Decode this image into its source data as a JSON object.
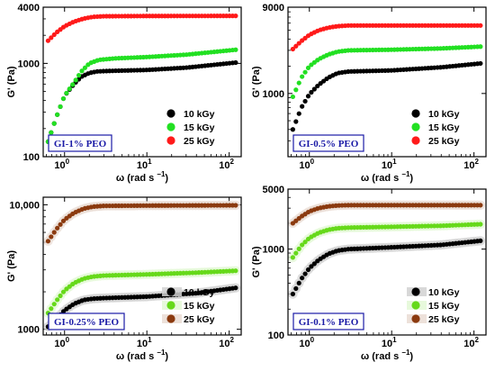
{
  "chart_data": [
    {
      "type": "scatter",
      "panel_label": "GI-1% PEO",
      "xlabel": "ω (rad s",
      "xlabel_sup": "−1",
      "xlabel_close": ")",
      "ylabel": "G' (Pa)",
      "xscale": "log",
      "yscale": "log",
      "xlim": [
        0.55,
        140
      ],
      "ylim": [
        100,
        4000
      ],
      "x_ticks": [
        {
          "value": 1,
          "label": "10",
          "sup": "0"
        },
        {
          "value": 10,
          "label": "10",
          "sup": "1"
        },
        {
          "value": 100,
          "label": "10",
          "sup": "2"
        }
      ],
      "y_ticks": [
        {
          "value": 100,
          "label": "100"
        },
        {
          "value": 1000,
          "label": "1000"
        },
        {
          "value": 4000,
          "label": "4000"
        }
      ],
      "legend_position": "bottom-right",
      "series": [
        {
          "name": "10 kGy",
          "color": "#000000",
          "anchors": [
            [
              0.63,
              145
            ],
            [
              0.8,
              270
            ],
            [
              1.0,
              450
            ],
            [
              1.3,
              600
            ],
            [
              1.6,
              720
            ],
            [
              2.0,
              790
            ],
            [
              2.5,
              820
            ],
            [
              3.5,
              830
            ],
            [
              10,
              850
            ],
            [
              30,
              900
            ],
            [
              120,
              1020
            ]
          ]
        },
        {
          "name": "15 kGy",
          "color": "#22e022",
          "anchors": [
            [
              0.63,
              145
            ],
            [
              0.8,
              270
            ],
            [
              1.0,
              450
            ],
            [
              1.3,
              620
            ],
            [
              1.6,
              820
            ],
            [
              2.0,
              1000
            ],
            [
              2.6,
              1090
            ],
            [
              4,
              1130
            ],
            [
              10,
              1170
            ],
            [
              30,
              1240
            ],
            [
              120,
              1400
            ]
          ]
        },
        {
          "name": "25 kGy",
          "color": "#ff1a1a",
          "anchors": [
            [
              0.63,
              1750
            ],
            [
              0.8,
              2150
            ],
            [
              1.0,
              2500
            ],
            [
              1.3,
              2800
            ],
            [
              1.7,
              3020
            ],
            [
              2.2,
              3150
            ],
            [
              3,
              3200
            ],
            [
              10,
              3220
            ],
            [
              120,
              3230
            ]
          ]
        }
      ]
    },
    {
      "type": "scatter",
      "panel_label": "GI-0.5% PEO",
      "xlabel": "ω (rad s",
      "xlabel_sup": "−1",
      "xlabel_close": ")",
      "ylabel": "G' (Pa)",
      "xscale": "log",
      "yscale": "log",
      "xlim": [
        0.55,
        140
      ],
      "ylim": [
        200,
        9000
      ],
      "x_ticks": [
        {
          "value": 1,
          "label": "10",
          "sup": "0"
        },
        {
          "value": 10,
          "label": "10",
          "sup": "1"
        },
        {
          "value": 100,
          "label": "10",
          "sup": "2"
        }
      ],
      "y_ticks": [
        {
          "value": 1000,
          "label": "1000"
        },
        {
          "value": 9000,
          "label": "9000"
        }
      ],
      "legend_position": "bottom-right",
      "series": [
        {
          "name": "10 kGy",
          "color": "#000000",
          "anchors": [
            [
              0.63,
              400
            ],
            [
              0.8,
              700
            ],
            [
              1.0,
              980
            ],
            [
              1.3,
              1250
            ],
            [
              1.7,
              1500
            ],
            [
              2.2,
              1680
            ],
            [
              3,
              1750
            ],
            [
              10,
              1800
            ],
            [
              40,
              1950
            ],
            [
              120,
              2150
            ]
          ]
        },
        {
          "name": "15 kGy",
          "color": "#22e022",
          "anchors": [
            [
              0.63,
              920
            ],
            [
              0.8,
              1500
            ],
            [
              1.0,
              2000
            ],
            [
              1.3,
              2400
            ],
            [
              1.7,
              2700
            ],
            [
              2.2,
              2900
            ],
            [
              3,
              3000
            ],
            [
              10,
              3050
            ],
            [
              40,
              3150
            ],
            [
              120,
              3300
            ]
          ]
        },
        {
          "name": "25 kGy",
          "color": "#ff1a1a",
          "anchors": [
            [
              0.63,
              3100
            ],
            [
              0.8,
              3800
            ],
            [
              1.0,
              4450
            ],
            [
              1.3,
              5000
            ],
            [
              1.7,
              5350
            ],
            [
              2.2,
              5550
            ],
            [
              3,
              5650
            ],
            [
              10,
              5650
            ],
            [
              120,
              5650
            ]
          ]
        }
      ]
    },
    {
      "type": "scatter",
      "panel_label": "GI-0.25% PEO",
      "xlabel": "ω (rad s",
      "xlabel_sup": "−1",
      "xlabel_close": ")",
      "ylabel": "G' (Pa)",
      "xscale": "log",
      "yscale": "log",
      "xlim": [
        0.55,
        140
      ],
      "ylim": [
        900,
        11500
      ],
      "x_ticks": [
        {
          "value": 1,
          "label": "10",
          "sup": "0"
        },
        {
          "value": 10,
          "label": "10",
          "sup": "1"
        },
        {
          "value": 100,
          "label": "10",
          "sup": "2"
        }
      ],
      "y_ticks": [
        {
          "value": 1000,
          "label": "1000"
        },
        {
          "value": 10000,
          "label": "10,000"
        }
      ],
      "legend_position": "bottom-right",
      "series": [
        {
          "name": "10 kGy",
          "color": "#000000",
          "anchors": [
            [
              0.63,
              1050
            ],
            [
              0.8,
              1220
            ],
            [
              1.0,
              1420
            ],
            [
              1.3,
              1600
            ],
            [
              1.7,
              1720
            ],
            [
              2.2,
              1760
            ],
            [
              3,
              1780
            ],
            [
              10,
              1830
            ],
            [
              40,
              1950
            ],
            [
              120,
              2150
            ]
          ]
        },
        {
          "name": "15 kGy",
          "color": "#66d91a",
          "anchors": [
            [
              0.63,
              1350
            ],
            [
              0.8,
              1700
            ],
            [
              1.0,
              2050
            ],
            [
              1.3,
              2350
            ],
            [
              1.7,
              2550
            ],
            [
              2.2,
              2650
            ],
            [
              3,
              2700
            ],
            [
              10,
              2760
            ],
            [
              40,
              2850
            ],
            [
              120,
              2950
            ]
          ]
        },
        {
          "name": "25 kGy",
          "color": "#8b3a0f",
          "anchors": [
            [
              0.63,
              5100
            ],
            [
              0.8,
              6400
            ],
            [
              1.0,
              7600
            ],
            [
              1.3,
              8600
            ],
            [
              1.7,
              9300
            ],
            [
              2.2,
              9650
            ],
            [
              3,
              9800
            ],
            [
              10,
              9850
            ],
            [
              120,
              9900
            ]
          ]
        }
      ]
    },
    {
      "type": "scatter",
      "panel_label": "GI-0.1% PEO",
      "xlabel": "ω (rad s",
      "xlabel_sup": "−1",
      "xlabel_close": ")",
      "ylabel": "G' (Pa)",
      "xscale": "log",
      "yscale": "log",
      "xlim": [
        0.55,
        140
      ],
      "ylim": [
        100,
        5000
      ],
      "x_ticks": [
        {
          "value": 1,
          "label": "10",
          "sup": "0"
        },
        {
          "value": 10,
          "label": "10",
          "sup": "1"
        },
        {
          "value": 100,
          "label": "10",
          "sup": "2"
        }
      ],
      "y_ticks": [
        {
          "value": 100,
          "label": "100"
        },
        {
          "value": 1000,
          "label": "1000"
        },
        {
          "value": 5000,
          "label": "5000"
        }
      ],
      "legend_position": "bottom-right",
      "series": [
        {
          "name": "10 kGy",
          "color": "#000000",
          "anchors": [
            [
              0.63,
              300
            ],
            [
              0.8,
              450
            ],
            [
              1.0,
              600
            ],
            [
              1.3,
              750
            ],
            [
              1.7,
              880
            ],
            [
              2.2,
              960
            ],
            [
              3,
              1000
            ],
            [
              10,
              1050
            ],
            [
              40,
              1120
            ],
            [
              120,
              1250
            ]
          ]
        },
        {
          "name": "15 kGy",
          "color": "#66d91a",
          "anchors": [
            [
              0.63,
              800
            ],
            [
              0.8,
              1100
            ],
            [
              1.0,
              1350
            ],
            [
              1.3,
              1550
            ],
            [
              1.7,
              1680
            ],
            [
              2.2,
              1750
            ],
            [
              3,
              1780
            ],
            [
              10,
              1820
            ],
            [
              40,
              1870
            ],
            [
              120,
              1950
            ]
          ]
        },
        {
          "name": "25 kGy",
          "color": "#8b3a0f",
          "anchors": [
            [
              0.63,
              2000
            ],
            [
              0.8,
              2400
            ],
            [
              1.0,
              2750
            ],
            [
              1.3,
              3000
            ],
            [
              1.7,
              3150
            ],
            [
              2.2,
              3220
            ],
            [
              3,
              3250
            ],
            [
              10,
              3250
            ],
            [
              120,
              3250
            ]
          ]
        }
      ]
    }
  ],
  "colors": {
    "panel_label_text": "#1a1aa6",
    "panel_label_border": "#1a1aa6",
    "axis": "#000000"
  }
}
